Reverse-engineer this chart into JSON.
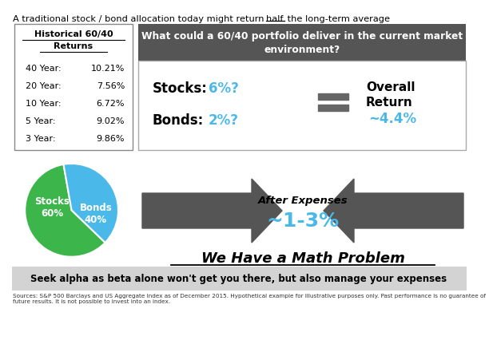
{
  "title_part1": "A traditional stock / bond allocation today might return ",
  "title_underline": "half",
  "title_part2": " the long-term average",
  "hist_box_title1": "Historical 60/40",
  "hist_box_title2": "Returns",
  "hist_data": [
    [
      "40 Year:",
      "10.21%"
    ],
    [
      "20 Year:",
      "7.56%"
    ],
    [
      "10 Year:",
      "6.72%"
    ],
    [
      "5 Year:",
      "9.02%"
    ],
    [
      "3 Year:",
      "9.86%"
    ]
  ],
  "right_header": "What could a 60/40 portfolio deliver in the current market\nenvironment?",
  "stocks_label": "Stocks:",
  "stocks_value": "6%?",
  "bonds_label": "Bonds:",
  "bonds_value": "2%?",
  "overall_label": "Overall\nReturn",
  "overall_value": "~4.4%",
  "after_expenses_label": "After Expenses",
  "after_expenses_value": "~1-3%",
  "math_problem": "We Have a Math Problem",
  "bottom_bar_text": "Seek alpha as beta alone won't get you there, but also manage your expenses",
  "sources_line1": "Sources: S&P 500 Barclays and US Aggregate Index as of December 2015. Hypothetical example for illustrative purposes only. Past performance is no guarantee of",
  "sources_line2": "future results. It is not possible to invest into an index.",
  "pie_sizes": [
    60,
    40
  ],
  "pie_colors": [
    "#3cb54a",
    "#4ab8e8"
  ],
  "pie_label_stocks": "Stocks\n60%",
  "pie_label_bonds": "Bonds\n40%",
  "dark_header_color": "#555555",
  "blue_color": "#4ab8e8",
  "arrow_color": "#555555",
  "bottom_bar_color": "#d3d3d3",
  "bg_color": "#ffffff"
}
